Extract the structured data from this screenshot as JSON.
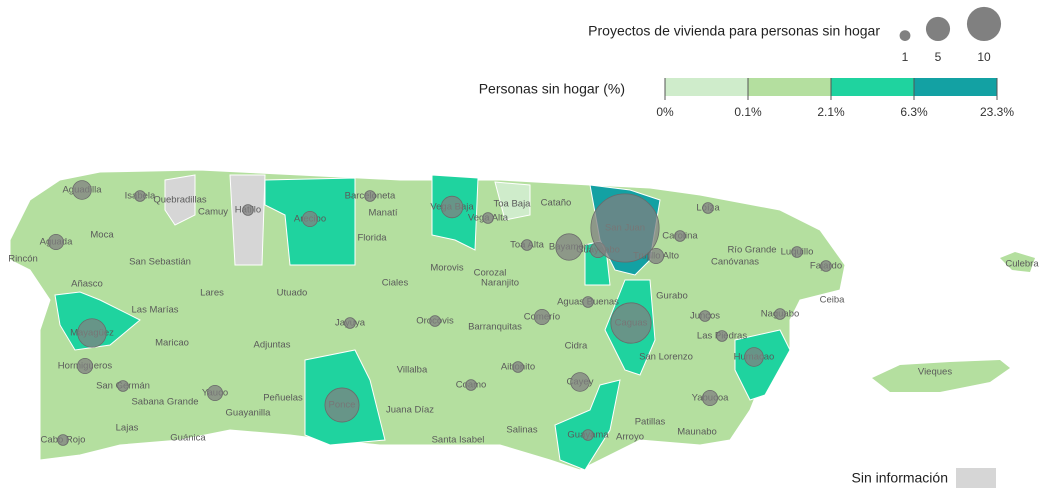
{
  "map": {
    "title_bubbles": "Proyectos de vivienda para personas sin hogar",
    "size_legend": [
      1,
      5,
      10
    ],
    "title_colors": "Personas sin hogar (%)",
    "color_breaks": [
      "0%",
      "0.1%",
      "2.1%",
      "6.3%",
      "23.3%"
    ],
    "color_classes": [
      "#cfeccb",
      "#b4df9f",
      "#1fd39f",
      "#13a1a3"
    ],
    "no_data": {
      "label": "Sin información",
      "color": "#d6d6d6"
    },
    "bubble_color": "#808080",
    "municipalities": [
      {
        "name": "Aguadilla",
        "color": "#b4df9f",
        "projects": 3
      },
      {
        "name": "Isabela",
        "color": "#b4df9f",
        "projects": 1
      },
      {
        "name": "Quebradillas",
        "color": "#d6d6d6",
        "projects": null
      },
      {
        "name": "Camuy",
        "color": "#b4df9f",
        "projects": null
      },
      {
        "name": "Hatillo",
        "color": "#d6d6d6",
        "projects": 1
      },
      {
        "name": "Arecibo",
        "color": "#1fd39f",
        "projects": 2
      },
      {
        "name": "Barceloneta",
        "color": "#b4df9f",
        "projects": 1
      },
      {
        "name": "Manatí",
        "color": "#b4df9f",
        "projects": null
      },
      {
        "name": "Florida",
        "color": "#b4df9f",
        "projects": null
      },
      {
        "name": "Vega Baja",
        "color": "#1fd39f",
        "projects": 4
      },
      {
        "name": "Vega Alta",
        "color": "#b4df9f",
        "projects": 1
      },
      {
        "name": "Toa Baja",
        "color": "#cfeccb",
        "projects": null
      },
      {
        "name": "Cataño",
        "color": "#b4df9f",
        "projects": null
      },
      {
        "name": "Toa Alta",
        "color": "#b4df9f",
        "projects": 1
      },
      {
        "name": "Bayamón",
        "color": "#b4df9f",
        "projects": 6
      },
      {
        "name": "Guaynabo",
        "color": "#1fd39f",
        "projects": 2
      },
      {
        "name": "San Juan",
        "color": "#13a1a3",
        "projects": 40
      },
      {
        "name": "Trujillo Alto",
        "color": "#b4df9f",
        "projects": 2
      },
      {
        "name": "Carolina",
        "color": "#b4df9f",
        "projects": 1
      },
      {
        "name": "Loíza",
        "color": "#b4df9f",
        "projects": 1
      },
      {
        "name": "Canóvanas",
        "color": "#b4df9f",
        "projects": null
      },
      {
        "name": "Río Grande",
        "color": "#b4df9f",
        "projects": null
      },
      {
        "name": "Luquillo",
        "color": "#b4df9f",
        "projects": 1
      },
      {
        "name": "Fajardo",
        "color": "#b4df9f",
        "projects": 1
      },
      {
        "name": "Culebra",
        "color": "#b4df9f",
        "projects": null
      },
      {
        "name": "Ceiba",
        "color": "#b4df9f",
        "projects": null
      },
      {
        "name": "Naguabo",
        "color": "#b4df9f",
        "projects": 1
      },
      {
        "name": "Humacao",
        "color": "#1fd39f",
        "projects": 3
      },
      {
        "name": "Las Piedras",
        "color": "#b4df9f",
        "projects": 1
      },
      {
        "name": "Juncos",
        "color": "#b4df9f",
        "projects": 1
      },
      {
        "name": "Gurabo",
        "color": "#b4df9f",
        "projects": null
      },
      {
        "name": "Caguas",
        "color": "#1fd39f",
        "projects": 14
      },
      {
        "name": "Aguas Buenas",
        "color": "#b4df9f",
        "projects": 1
      },
      {
        "name": "San Lorenzo",
        "color": "#b4df9f",
        "projects": null
      },
      {
        "name": "Cidra",
        "color": "#b4df9f",
        "projects": null
      },
      {
        "name": "Comerío",
        "color": "#b4df9f",
        "projects": 2
      },
      {
        "name": "Cayey",
        "color": "#b4df9f",
        "projects": 3
      },
      {
        "name": "Guayama",
        "color": "#1fd39f",
        "projects": 1
      },
      {
        "name": "Arroyo",
        "color": "#b4df9f",
        "projects": null
      },
      {
        "name": "Patillas",
        "color": "#b4df9f",
        "projects": null
      },
      {
        "name": "Maunabo",
        "color": "#b4df9f",
        "projects": null
      },
      {
        "name": "Yabucoa",
        "color": "#b4df9f",
        "projects": 2
      },
      {
        "name": "Salinas",
        "color": "#b4df9f",
        "projects": null
      },
      {
        "name": "Santa Isabel",
        "color": "#b4df9f",
        "projects": null
      },
      {
        "name": "Coamo",
        "color": "#b4df9f",
        "projects": 1
      },
      {
        "name": "Juana Díaz",
        "color": "#b4df9f",
        "projects": null
      },
      {
        "name": "Ponce",
        "color": "#1fd39f",
        "projects": 10
      },
      {
        "name": "Villalba",
        "color": "#b4df9f",
        "projects": null
      },
      {
        "name": "Aibonito",
        "color": "#b4df9f",
        "projects": 1
      },
      {
        "name": "Barranquitas",
        "color": "#b4df9f",
        "projects": null
      },
      {
        "name": "Orocovis",
        "color": "#b4df9f",
        "projects": 1
      },
      {
        "name": "Naranjito",
        "color": "#b4df9f",
        "projects": null
      },
      {
        "name": "Corozal",
        "color": "#b4df9f",
        "projects": null
      },
      {
        "name": "Morovis",
        "color": "#b4df9f",
        "projects": null
      },
      {
        "name": "Ciales",
        "color": "#b4df9f",
        "projects": null
      },
      {
        "name": "Utuado",
        "color": "#b4df9f",
        "projects": null
      },
      {
        "name": "Jayuya",
        "color": "#b4df9f",
        "projects": 1
      },
      {
        "name": "Adjuntas",
        "color": "#b4df9f",
        "projects": null
      },
      {
        "name": "Peñuelas",
        "color": "#b4df9f",
        "projects": null
      },
      {
        "name": "Guayanilla",
        "color": "#b4df9f",
        "projects": null
      },
      {
        "name": "Yauco",
        "color": "#b4df9f",
        "projects": 2
      },
      {
        "name": "Guánica",
        "color": "#b4df9f",
        "projects": null
      },
      {
        "name": "Lajas",
        "color": "#b4df9f",
        "projects": null
      },
      {
        "name": "Cabo Rojo",
        "color": "#b4df9f",
        "projects": 1
      },
      {
        "name": "Sabana Grande",
        "color": "#b4df9f",
        "projects": null
      },
      {
        "name": "San Germán",
        "color": "#b4df9f",
        "projects": 1
      },
      {
        "name": "Hormigueros",
        "color": "#b4df9f",
        "projects": 2
      },
      {
        "name": "Maricao",
        "color": "#b4df9f",
        "projects": null
      },
      {
        "name": "Las Marías",
        "color": "#b4df9f",
        "projects": null
      },
      {
        "name": "Mayagüez",
        "color": "#1fd39f",
        "projects": 7
      },
      {
        "name": "Añasco",
        "color": "#b4df9f",
        "projects": null
      },
      {
        "name": "Rincón",
        "color": "#b4df9f",
        "projects": null
      },
      {
        "name": "Aguada",
        "color": "#b4df9f",
        "projects": 2
      },
      {
        "name": "Moca",
        "color": "#b4df9f",
        "projects": null
      },
      {
        "name": "San Sebastián",
        "color": "#b4df9f",
        "projects": null
      },
      {
        "name": "Lares",
        "color": "#b4df9f",
        "projects": null
      },
      {
        "name": "Vieques",
        "color": "#b4df9f",
        "projects": null
      }
    ]
  }
}
